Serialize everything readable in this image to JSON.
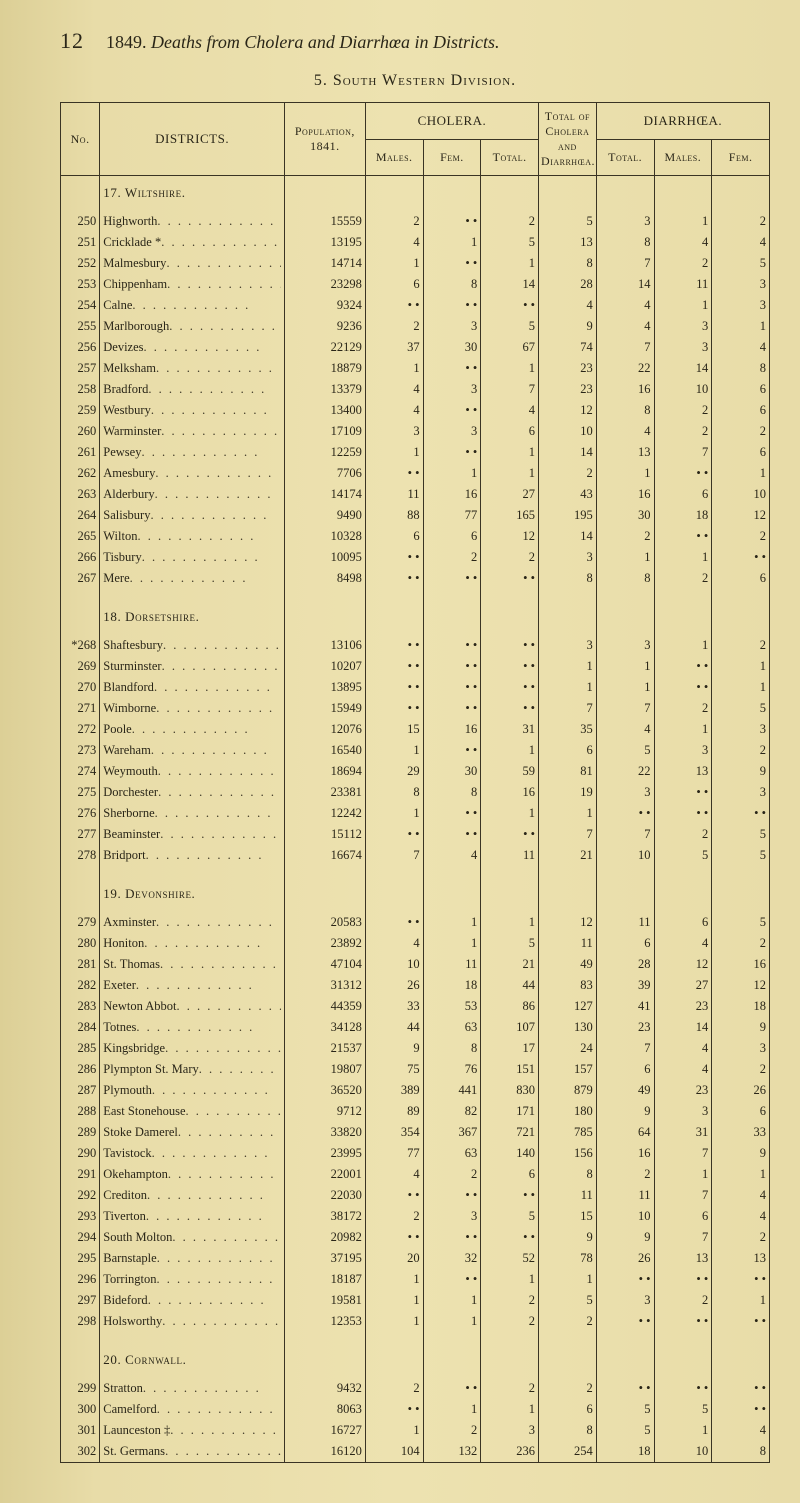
{
  "page_number": "12",
  "running_title_prefix": "1849.",
  "running_title_italic": "Deaths from Cholera and Diarrhœa in Districts.",
  "section_title": "5. South Western Division.",
  "headers": {
    "no": "No.",
    "districts": "DISTRICTS.",
    "population": "Population, 1841.",
    "cholera": "CHOLERA.",
    "cholera_sub": {
      "males": "Males.",
      "fem": "Fem.",
      "total": "Total."
    },
    "middle": "Total of Cholera and Diarrhœa.",
    "diarr": "DIARRHŒA.",
    "diarr_sub": {
      "total": "Total.",
      "males": "Males.",
      "fem": "Fem."
    }
  },
  "dot_cell": "• •",
  "groups": [
    {
      "label": "17. Wiltshire.",
      "rows": [
        {
          "no": "250",
          "d": "Highworth",
          "pop": "15559",
          "cm": "2",
          "cf": "• •",
          "ct": "2",
          "tc": "5",
          "dt": "3",
          "dm": "1",
          "df": "2"
        },
        {
          "no": "251",
          "d": "Cricklade *",
          "pop": "13195",
          "cm": "4",
          "cf": "1",
          "ct": "5",
          "tc": "13",
          "dt": "8",
          "dm": "4",
          "df": "4"
        },
        {
          "no": "252",
          "d": "Malmesbury",
          "pop": "14714",
          "cm": "1",
          "cf": "• •",
          "ct": "1",
          "tc": "8",
          "dt": "7",
          "dm": "2",
          "df": "5"
        },
        {
          "no": "253",
          "d": "Chippenham",
          "pop": "23298",
          "cm": "6",
          "cf": "8",
          "ct": "14",
          "tc": "28",
          "dt": "14",
          "dm": "11",
          "df": "3"
        },
        {
          "no": "254",
          "d": "Calne",
          "pop": "9324",
          "cm": "• •",
          "cf": "• •",
          "ct": "• •",
          "tc": "4",
          "dt": "4",
          "dm": "1",
          "df": "3"
        },
        {
          "no": "255",
          "d": "Marlborough",
          "pop": "9236",
          "cm": "2",
          "cf": "3",
          "ct": "5",
          "tc": "9",
          "dt": "4",
          "dm": "3",
          "df": "1"
        },
        {
          "no": "256",
          "d": "Devizes",
          "pop": "22129",
          "cm": "37",
          "cf": "30",
          "ct": "67",
          "tc": "74",
          "dt": "7",
          "dm": "3",
          "df": "4"
        },
        {
          "no": "257",
          "d": "Melksham",
          "pop": "18879",
          "cm": "1",
          "cf": "• •",
          "ct": "1",
          "tc": "23",
          "dt": "22",
          "dm": "14",
          "df": "8"
        },
        {
          "no": "258",
          "d": "Bradford",
          "pop": "13379",
          "cm": "4",
          "cf": "3",
          "ct": "7",
          "tc": "23",
          "dt": "16",
          "dm": "10",
          "df": "6"
        },
        {
          "no": "259",
          "d": "Westbury",
          "pop": "13400",
          "cm": "4",
          "cf": "• •",
          "ct": "4",
          "tc": "12",
          "dt": "8",
          "dm": "2",
          "df": "6"
        },
        {
          "no": "260",
          "d": "Warminster",
          "pop": "17109",
          "cm": "3",
          "cf": "3",
          "ct": "6",
          "tc": "10",
          "dt": "4",
          "dm": "2",
          "df": "2"
        },
        {
          "no": "261",
          "d": "Pewsey",
          "pop": "12259",
          "cm": "1",
          "cf": "• •",
          "ct": "1",
          "tc": "14",
          "dt": "13",
          "dm": "7",
          "df": "6"
        },
        {
          "no": "262",
          "d": "Amesbury",
          "pop": "7706",
          "cm": "• •",
          "cf": "1",
          "ct": "1",
          "tc": "2",
          "dt": "1",
          "dm": "• •",
          "df": "1"
        },
        {
          "no": "263",
          "d": "Alderbury",
          "pop": "14174",
          "cm": "11",
          "cf": "16",
          "ct": "27",
          "tc": "43",
          "dt": "16",
          "dm": "6",
          "df": "10"
        },
        {
          "no": "264",
          "d": "Salisbury",
          "pop": "9490",
          "cm": "88",
          "cf": "77",
          "ct": "165",
          "tc": "195",
          "dt": "30",
          "dm": "18",
          "df": "12"
        },
        {
          "no": "265",
          "d": "Wilton",
          "pop": "10328",
          "cm": "6",
          "cf": "6",
          "ct": "12",
          "tc": "14",
          "dt": "2",
          "dm": "• •",
          "df": "2"
        },
        {
          "no": "266",
          "d": "Tisbury",
          "pop": "10095",
          "cm": "• •",
          "cf": "2",
          "ct": "2",
          "tc": "3",
          "dt": "1",
          "dm": "1",
          "df": "• •"
        },
        {
          "no": "267",
          "d": "Mere",
          "pop": "8498",
          "cm": "• •",
          "cf": "• •",
          "ct": "• •",
          "tc": "8",
          "dt": "8",
          "dm": "2",
          "df": "6"
        }
      ]
    },
    {
      "label": "18. Dorsetshire.",
      "rows": [
        {
          "no": "*268",
          "d": "Shaftesbury",
          "pop": "13106",
          "cm": "• •",
          "cf": "• •",
          "ct": "• •",
          "tc": "3",
          "dt": "3",
          "dm": "1",
          "df": "2"
        },
        {
          "no": "269",
          "d": "Sturminster",
          "pop": "10207",
          "cm": "• •",
          "cf": "• •",
          "ct": "• •",
          "tc": "1",
          "dt": "1",
          "dm": "• •",
          "df": "1"
        },
        {
          "no": "270",
          "d": "Blandford",
          "pop": "13895",
          "cm": "• •",
          "cf": "• •",
          "ct": "• •",
          "tc": "1",
          "dt": "1",
          "dm": "• •",
          "df": "1"
        },
        {
          "no": "271",
          "d": "Wimborne",
          "pop": "15949",
          "cm": "• •",
          "cf": "• •",
          "ct": "• •",
          "tc": "7",
          "dt": "7",
          "dm": "2",
          "df": "5"
        },
        {
          "no": "272",
          "d": "Poole",
          "pop": "12076",
          "cm": "15",
          "cf": "16",
          "ct": "31",
          "tc": "35",
          "dt": "4",
          "dm": "1",
          "df": "3"
        },
        {
          "no": "273",
          "d": "Wareham",
          "pop": "16540",
          "cm": "1",
          "cf": "• •",
          "ct": "1",
          "tc": "6",
          "dt": "5",
          "dm": "3",
          "df": "2"
        },
        {
          "no": "274",
          "d": "Weymouth",
          "pop": "18694",
          "cm": "29",
          "cf": "30",
          "ct": "59",
          "tc": "81",
          "dt": "22",
          "dm": "13",
          "df": "9"
        },
        {
          "no": "275",
          "d": "Dorchester",
          "pop": "23381",
          "cm": "8",
          "cf": "8",
          "ct": "16",
          "tc": "19",
          "dt": "3",
          "dm": "• •",
          "df": "3"
        },
        {
          "no": "276",
          "d": "Sherborne",
          "pop": "12242",
          "cm": "1",
          "cf": "• •",
          "ct": "1",
          "tc": "1",
          "dt": "• •",
          "dm": "• •",
          "df": "• •"
        },
        {
          "no": "277",
          "d": "Beaminster",
          "pop": "15112",
          "cm": "• •",
          "cf": "• •",
          "ct": "• •",
          "tc": "7",
          "dt": "7",
          "dm": "2",
          "df": "5"
        },
        {
          "no": "278",
          "d": "Bridport",
          "pop": "16674",
          "cm": "7",
          "cf": "4",
          "ct": "11",
          "tc": "21",
          "dt": "10",
          "dm": "5",
          "df": "5"
        }
      ]
    },
    {
      "label": "19. Devonshire.",
      "rows": [
        {
          "no": "279",
          "d": "Axminster",
          "pop": "20583",
          "cm": "• •",
          "cf": "1",
          "ct": "1",
          "tc": "12",
          "dt": "11",
          "dm": "6",
          "df": "5"
        },
        {
          "no": "280",
          "d": "Honiton",
          "pop": "23892",
          "cm": "4",
          "cf": "1",
          "ct": "5",
          "tc": "11",
          "dt": "6",
          "dm": "4",
          "df": "2"
        },
        {
          "no": "281",
          "d": "St. Thomas",
          "pop": "47104",
          "cm": "10",
          "cf": "11",
          "ct": "21",
          "tc": "49",
          "dt": "28",
          "dm": "12",
          "df": "16"
        },
        {
          "no": "282",
          "d": "Exeter",
          "pop": "31312",
          "cm": "26",
          "cf": "18",
          "ct": "44",
          "tc": "83",
          "dt": "39",
          "dm": "27",
          "df": "12"
        },
        {
          "no": "283",
          "d": "Newton Abbot",
          "pop": "44359",
          "cm": "33",
          "cf": "53",
          "ct": "86",
          "tc": "127",
          "dt": "41",
          "dm": "23",
          "df": "18"
        },
        {
          "no": "284",
          "d": "Totnes",
          "pop": "34128",
          "cm": "44",
          "cf": "63",
          "ct": "107",
          "tc": "130",
          "dt": "23",
          "dm": "14",
          "df": "9"
        },
        {
          "no": "285",
          "d": "Kingsbridge",
          "pop": "21537",
          "cm": "9",
          "cf": "8",
          "ct": "17",
          "tc": "24",
          "dt": "7",
          "dm": "4",
          "df": "3"
        },
        {
          "no": "286",
          "d": "Plympton St. Mary",
          "pop": "19807",
          "cm": "75",
          "cf": "76",
          "ct": "151",
          "tc": "157",
          "dt": "6",
          "dm": "4",
          "df": "2"
        },
        {
          "no": "287",
          "d": "Plymouth",
          "pop": "36520",
          "cm": "389",
          "cf": "441",
          "ct": "830",
          "tc": "879",
          "dt": "49",
          "dm": "23",
          "df": "26"
        },
        {
          "no": "288",
          "d": "East Stonehouse",
          "pop": "9712",
          "cm": "89",
          "cf": "82",
          "ct": "171",
          "tc": "180",
          "dt": "9",
          "dm": "3",
          "df": "6"
        },
        {
          "no": "289",
          "d": "Stoke Damerel",
          "pop": "33820",
          "cm": "354",
          "cf": "367",
          "ct": "721",
          "tc": "785",
          "dt": "64",
          "dm": "31",
          "df": "33"
        },
        {
          "no": "290",
          "d": "Tavistock",
          "pop": "23995",
          "cm": "77",
          "cf": "63",
          "ct": "140",
          "tc": "156",
          "dt": "16",
          "dm": "7",
          "df": "9"
        },
        {
          "no": "291",
          "d": "Okehampton",
          "pop": "22001",
          "cm": "4",
          "cf": "2",
          "ct": "6",
          "tc": "8",
          "dt": "2",
          "dm": "1",
          "df": "1"
        },
        {
          "no": "292",
          "d": "Crediton",
          "pop": "22030",
          "cm": "• •",
          "cf": "• •",
          "ct": "• •",
          "tc": "11",
          "dt": "11",
          "dm": "7",
          "df": "4"
        },
        {
          "no": "293",
          "d": "Tiverton",
          "pop": "38172",
          "cm": "2",
          "cf": "3",
          "ct": "5",
          "tc": "15",
          "dt": "10",
          "dm": "6",
          "df": "4"
        },
        {
          "no": "294",
          "d": "South Molton",
          "pop": "20982",
          "cm": "• •",
          "cf": "• •",
          "ct": "• •",
          "tc": "9",
          "dt": "9",
          "dm": "7",
          "df": "2"
        },
        {
          "no": "295",
          "d": "Barnstaple",
          "pop": "37195",
          "cm": "20",
          "cf": "32",
          "ct": "52",
          "tc": "78",
          "dt": "26",
          "dm": "13",
          "df": "13"
        },
        {
          "no": "296",
          "d": "Torrington",
          "pop": "18187",
          "cm": "1",
          "cf": "• •",
          "ct": "1",
          "tc": "1",
          "dt": "• •",
          "dm": "• •",
          "df": "• •"
        },
        {
          "no": "297",
          "d": "Bideford",
          "pop": "19581",
          "cm": "1",
          "cf": "1",
          "ct": "2",
          "tc": "5",
          "dt": "3",
          "dm": "2",
          "df": "1"
        },
        {
          "no": "298",
          "d": "Holsworthy",
          "pop": "12353",
          "cm": "1",
          "cf": "1",
          "ct": "2",
          "tc": "2",
          "dt": "• •",
          "dm": "• •",
          "df": "• •"
        }
      ]
    },
    {
      "label": "20. Cornwall.",
      "rows": [
        {
          "no": "299",
          "d": "Stratton",
          "pop": "9432",
          "cm": "2",
          "cf": "• •",
          "ct": "2",
          "tc": "2",
          "dt": "• •",
          "dm": "• •",
          "df": "• •"
        },
        {
          "no": "300",
          "d": "Camelford",
          "pop": "8063",
          "cm": "• •",
          "cf": "1",
          "ct": "1",
          "tc": "6",
          "dt": "5",
          "dm": "5",
          "df": "• •"
        },
        {
          "no": "301",
          "d": "Launceston  ‡",
          "pop": "16727",
          "cm": "1",
          "cf": "2",
          "ct": "3",
          "tc": "8",
          "dt": "5",
          "dm": "1",
          "df": "4"
        },
        {
          "no": "302",
          "d": "St. Germans",
          "pop": "16120",
          "cm": "104",
          "cf": "132",
          "ct": "236",
          "tc": "254",
          "dt": "18",
          "dm": "10",
          "df": "8"
        }
      ]
    }
  ]
}
